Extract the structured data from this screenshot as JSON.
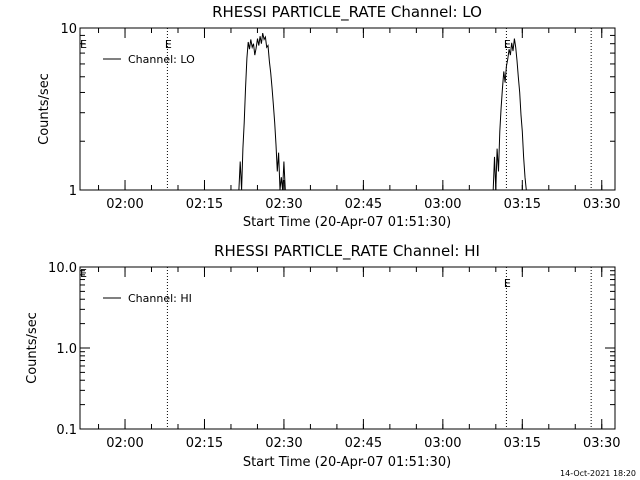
{
  "footer": {
    "timestamp": "14-Oct-2021 18:20"
  },
  "chart_data": [
    {
      "type": "line",
      "title": "RHESSI PARTICLE_RATE Channel: LO",
      "xlabel": "Start Time (20-Apr-07 01:51:30)",
      "ylabel": "Counts/sec",
      "y_scale": "log",
      "ylim": [
        1,
        10
      ],
      "yticks": [
        "1",
        "10"
      ],
      "xlim": [
        "01:51:30",
        "03:32:30"
      ],
      "xticks": [
        "02:00",
        "02:15",
        "02:30",
        "02:45",
        "03:00",
        "03:15",
        "03:30"
      ],
      "legend": {
        "position": "top-left",
        "entry": "Channel: LO"
      },
      "event_lines": [
        {
          "time": "02:08:00",
          "label": "E"
        },
        {
          "time": "03:12:00",
          "label": "E"
        },
        {
          "time": "03:28:00",
          "label": ""
        }
      ],
      "left_marker": "E",
      "series": [
        {
          "name": "Channel: LO",
          "points": [
            [
              "02:21:30",
              1.0
            ],
            [
              "02:21:45",
              1.5
            ],
            [
              "02:22:00",
              1.0
            ],
            [
              "02:22:15",
              1.8
            ],
            [
              "02:22:30",
              2.6
            ],
            [
              "02:22:45",
              4.2
            ],
            [
              "02:23:00",
              6.5
            ],
            [
              "02:23:15",
              8.2
            ],
            [
              "02:23:30",
              7.4
            ],
            [
              "02:23:45",
              8.5
            ],
            [
              "02:24:00",
              7.6
            ],
            [
              "02:24:15",
              8.0
            ],
            [
              "02:24:30",
              6.8
            ],
            [
              "02:24:45",
              7.5
            ],
            [
              "02:25:00",
              8.6
            ],
            [
              "02:25:15",
              7.8
            ],
            [
              "02:25:30",
              8.9
            ],
            [
              "02:25:45",
              8.0
            ],
            [
              "02:26:00",
              9.3
            ],
            [
              "02:26:15",
              8.5
            ],
            [
              "02:26:30",
              8.8
            ],
            [
              "02:26:45",
              7.6
            ],
            [
              "02:27:00",
              7.8
            ],
            [
              "02:27:15",
              6.2
            ],
            [
              "02:27:30",
              5.3
            ],
            [
              "02:27:45",
              4.3
            ],
            [
              "02:28:00",
              3.4
            ],
            [
              "02:28:15",
              2.6
            ],
            [
              "02:28:30",
              1.9
            ],
            [
              "02:28:45",
              1.3
            ],
            [
              "02:29:00",
              1.7
            ],
            [
              "02:29:15",
              1.0
            ],
            [
              "02:29:30",
              1.2
            ],
            [
              "02:29:45",
              1.0
            ],
            [
              "02:30:00",
              1.5
            ],
            [
              "02:30:15",
              1.0
            ],
            [
              "03:09:30",
              1.0
            ],
            [
              "03:09:45",
              1.6
            ],
            [
              "03:10:00",
              1.0
            ],
            [
              "03:10:15",
              1.8
            ],
            [
              "03:10:30",
              1.3
            ],
            [
              "03:10:45",
              2.3
            ],
            [
              "03:11:00",
              3.2
            ],
            [
              "03:11:15",
              4.2
            ],
            [
              "03:11:30",
              5.4
            ],
            [
              "03:11:45",
              4.6
            ],
            [
              "03:12:00",
              5.8
            ],
            [
              "03:12:15",
              6.4
            ],
            [
              "03:12:30",
              7.4
            ],
            [
              "03:12:45",
              6.8
            ],
            [
              "03:13:00",
              8.1
            ],
            [
              "03:13:15",
              7.2
            ],
            [
              "03:13:30",
              8.6
            ],
            [
              "03:13:45",
              7.6
            ],
            [
              "03:14:00",
              6.3
            ],
            [
              "03:14:15",
              5.0
            ],
            [
              "03:14:30",
              4.0
            ],
            [
              "03:14:45",
              2.9
            ],
            [
              "03:15:00",
              2.3
            ],
            [
              "03:15:15",
              1.6
            ],
            [
              "03:15:30",
              1.2
            ],
            [
              "03:15:45",
              1.0
            ]
          ]
        }
      ]
    },
    {
      "type": "line",
      "title": "RHESSI PARTICLE_RATE Channel: HI",
      "xlabel": "Start Time (20-Apr-07 01:51:30)",
      "ylabel": "Counts/sec",
      "y_scale": "log",
      "ylim": [
        0.1,
        10
      ],
      "yticks": [
        "0.1",
        "1.0",
        "10.0"
      ],
      "xlim": [
        "01:51:30",
        "03:32:30"
      ],
      "xticks": [
        "02:00",
        "02:15",
        "02:30",
        "02:45",
        "03:00",
        "03:15",
        "03:30"
      ],
      "legend": {
        "position": "top-left",
        "entry": "Channel: HI"
      },
      "event_lines": [
        {
          "time": "02:08:00",
          "label": ""
        },
        {
          "time": "03:12:00",
          "label": "E"
        },
        {
          "time": "03:28:00",
          "label": ""
        }
      ],
      "left_marker": "E",
      "series": [
        {
          "name": "Channel: HI",
          "points": []
        }
      ]
    }
  ]
}
